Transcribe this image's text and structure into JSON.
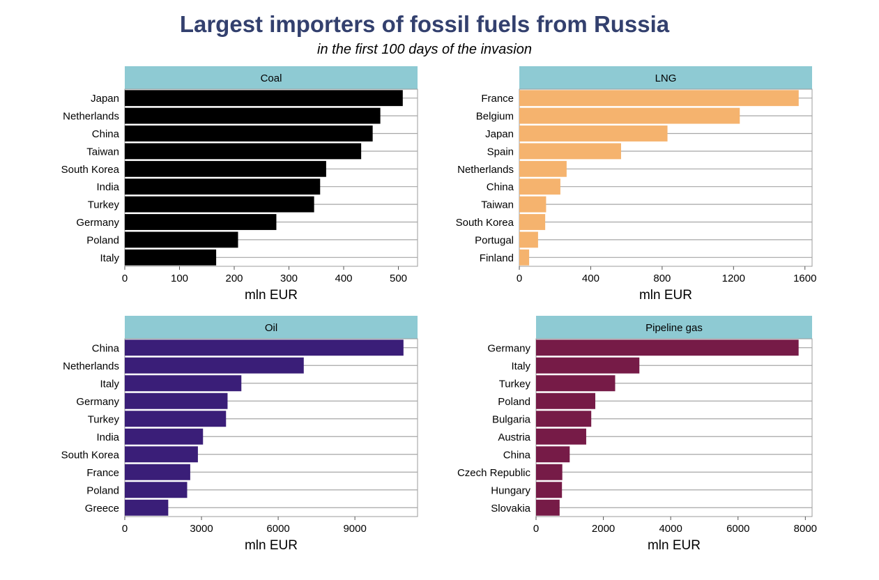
{
  "title": "Largest importers of fossil fuels from Russia",
  "subtitle": "in the first 100 days of the invasion",
  "chart_data": [
    {
      "type": "bar",
      "orientation": "horizontal",
      "title": "Coal",
      "xlabel": "mln EUR",
      "ylabel": "",
      "color": "#000000",
      "xlim": [
        0,
        535
      ],
      "xticks": [
        0,
        100,
        200,
        300,
        400,
        500
      ],
      "xtick_labels": [
        "0",
        "100",
        "200",
        "300",
        "400",
        "500"
      ],
      "categories": [
        "Japan",
        "Netherlands",
        "China",
        "Taiwan",
        "South Korea",
        "India",
        "Turkey",
        "Germany",
        "Poland",
        "Italy"
      ],
      "values": [
        508,
        467,
        453,
        432,
        368,
        357,
        346,
        277,
        207,
        167
      ]
    },
    {
      "type": "bar",
      "orientation": "horizontal",
      "title": "LNG",
      "xlabel": "mln EUR",
      "ylabel": "",
      "color": "#f5b36e",
      "xlim": [
        0,
        1640
      ],
      "xticks": [
        0,
        400,
        800,
        1200,
        1600
      ],
      "xtick_labels": [
        "0",
        "400",
        "800",
        "1200",
        "1600"
      ],
      "categories": [
        "France",
        "Belgium",
        "Japan",
        "Spain",
        "Netherlands",
        "China",
        "Taiwan",
        "South Korea",
        "Portugal",
        "Finland"
      ],
      "values": [
        1565,
        1235,
        830,
        570,
        265,
        230,
        150,
        145,
        105,
        55
      ]
    },
    {
      "type": "bar",
      "orientation": "horizontal",
      "title": "Oil",
      "xlabel": "mln EUR",
      "ylabel": "",
      "color": "#3a1e78",
      "xlim": [
        0,
        11450
      ],
      "xticks": [
        0,
        3000,
        6000,
        9000
      ],
      "xtick_labels": [
        "0",
        "3000",
        "6000",
        "9000"
      ],
      "categories": [
        "China",
        "Netherlands",
        "Italy",
        "Germany",
        "Turkey",
        "India",
        "South Korea",
        "France",
        "Poland",
        "Greece"
      ],
      "values": [
        10900,
        7000,
        4560,
        4020,
        3960,
        3060,
        2860,
        2560,
        2440,
        1700
      ]
    },
    {
      "type": "bar",
      "orientation": "horizontal",
      "title": "Pipeline gas",
      "xlabel": "mln EUR",
      "ylabel": "",
      "color": "#761b47",
      "xlim": [
        0,
        8200
      ],
      "xticks": [
        0,
        2000,
        4000,
        6000,
        8000
      ],
      "xtick_labels": [
        "0",
        "2000",
        "4000",
        "6000",
        "8000"
      ],
      "categories": [
        "Germany",
        "Italy",
        "Turkey",
        "Poland",
        "Bulgaria",
        "Austria",
        "China",
        "Czech Republic",
        "Hungary",
        "Slovakia"
      ],
      "values": [
        7800,
        3070,
        2350,
        1760,
        1640,
        1490,
        1000,
        780,
        770,
        700
      ]
    }
  ]
}
